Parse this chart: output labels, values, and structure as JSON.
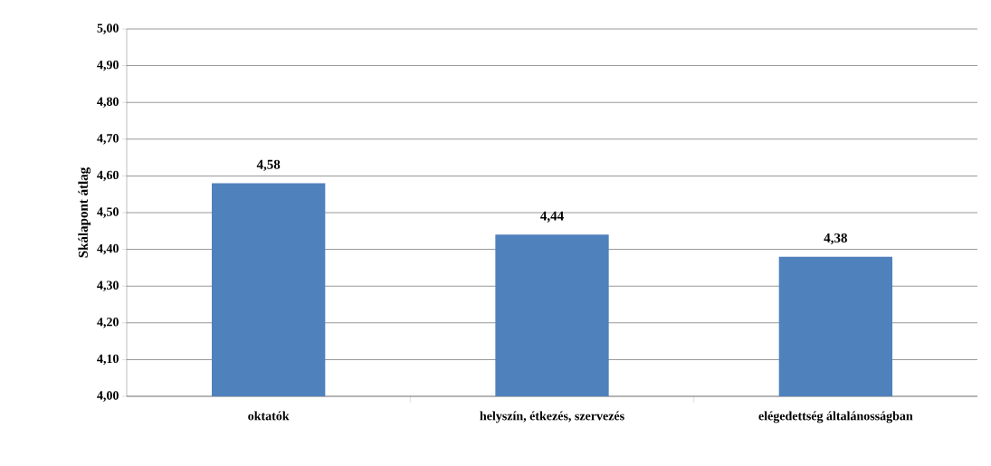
{
  "chart_data": {
    "type": "bar",
    "ylabel": "Skálapont átlag",
    "categories": [
      "oktatók",
      "helyszín, étkezés, szervezés",
      "elégedettség általánosságban"
    ],
    "values": [
      4.58,
      4.44,
      4.38
    ],
    "color": "#4f81bd",
    "value_labels": [
      "4,58",
      "4,44",
      "4,38"
    ],
    "ylim": [
      4.0,
      5.0
    ],
    "yticks": [
      {
        "value": 4.0,
        "label": "4,00"
      },
      {
        "value": 4.1,
        "label": "4,10"
      },
      {
        "value": 4.2,
        "label": "4,20"
      },
      {
        "value": 4.3,
        "label": "4,30"
      },
      {
        "value": 4.4,
        "label": "4,40"
      },
      {
        "value": 4.5,
        "label": "4,50"
      },
      {
        "value": 4.6,
        "label": "4,60"
      },
      {
        "value": 4.7,
        "label": "4,70"
      },
      {
        "value": 4.8,
        "label": "4,80"
      },
      {
        "value": 4.9,
        "label": "4,90"
      },
      {
        "value": 5.0,
        "label": "5,00"
      }
    ],
    "grid": "y"
  }
}
